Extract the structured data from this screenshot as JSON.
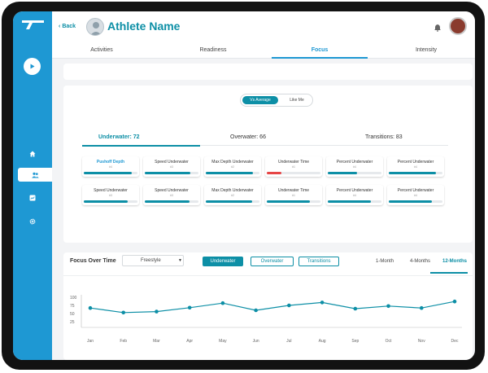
{
  "header": {
    "back_label": "Back",
    "athlete_name": "Athlete Name"
  },
  "tabs": [
    {
      "label": "Activities"
    },
    {
      "label": "Readiness"
    },
    {
      "label": "Focus",
      "active": true
    },
    {
      "label": "Intensity"
    }
  ],
  "comparison_toggle": {
    "option_on": "Vs Average",
    "option_off": "Like Me"
  },
  "categories": [
    {
      "label": "Underwater: 72",
      "active": true
    },
    {
      "label": "Overwater: 66"
    },
    {
      "label": "Transitions: 83"
    }
  ],
  "skills": [
    {
      "name": "Pushoff Depth",
      "sub": "#4",
      "value": 0.9,
      "highlight": true,
      "color": "#0d8fa6"
    },
    {
      "name": "Speed Underwater",
      "sub": "#3",
      "value": 0.85,
      "color": "#0d8fa6"
    },
    {
      "name": "Max Depth Underwater",
      "sub": "#2",
      "value": 0.88,
      "color": "#0d8fa6"
    },
    {
      "name": "Underwater Time",
      "sub": "#1",
      "value": 0.28,
      "color": "#e64545"
    },
    {
      "name": "Percent Underwater",
      "sub": "#4",
      "value": 0.55,
      "color": "#0d8fa6"
    },
    {
      "name": "Percent Underwater",
      "sub": "#4",
      "value": 0.88,
      "color": "#0d8fa6"
    },
    {
      "name": "Speed Underwater",
      "sub": "#3",
      "value": 0.82,
      "color": "#0d8fa6"
    },
    {
      "name": "Speed Underwater",
      "sub": "#3",
      "value": 0.84,
      "color": "#0d8fa6"
    },
    {
      "name": "Max Depth Underwater",
      "sub": "#2",
      "value": 0.86,
      "color": "#0d8fa6"
    },
    {
      "name": "Underwater Time",
      "sub": "#1",
      "value": 0.8,
      "color": "#0d8fa6"
    },
    {
      "name": "Percent Underwater",
      "sub": "#4",
      "value": 0.8,
      "color": "#0d8fa6"
    },
    {
      "name": "Percent Underwater",
      "sub": "#4",
      "value": 0.8,
      "color": "#0d8fa6"
    }
  ],
  "focus_over_time": {
    "title": "Focus Over Time",
    "stroke_select": "Freestyle",
    "metric_buttons": [
      {
        "label": "Underwater",
        "active": true
      },
      {
        "label": "Overwater"
      },
      {
        "label": "Transitions"
      }
    ],
    "ranges": [
      {
        "label": "1-Month"
      },
      {
        "label": "4-Months"
      },
      {
        "label": "12-Months",
        "active": true
      }
    ]
  },
  "chart_data": {
    "type": "line",
    "categories": [
      "Jan",
      "Feb",
      "Mar",
      "Apr",
      "May",
      "Jun",
      "Jul",
      "Aug",
      "Sep",
      "Oct",
      "Nov",
      "Dec"
    ],
    "series": [
      {
        "values": [
          67,
          53,
          56,
          68,
          82,
          60,
          75,
          84,
          65,
          73,
          67,
          87
        ]
      }
    ],
    "yticks": [
      25,
      50,
      75,
      100
    ],
    "ylim": [
      0,
      100
    ],
    "grid": false,
    "color": "#0d8fa6"
  },
  "colors": {
    "accent": "#0d8fa6",
    "sidebar": "#1e98d3",
    "alert": "#e64545"
  }
}
